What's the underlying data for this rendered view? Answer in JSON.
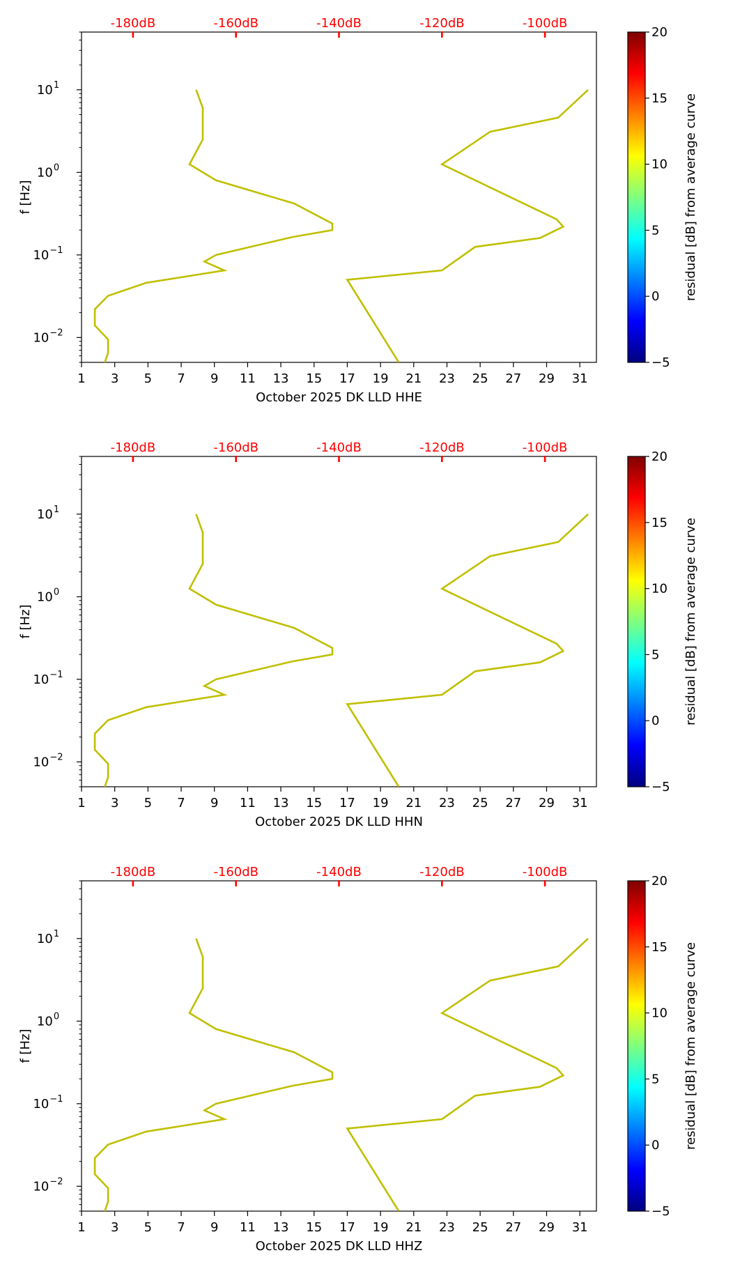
{
  "colors": {
    "curve": "#bfbf00",
    "db_axis": "#ff0000",
    "axis": "#000000",
    "colormap": [
      "#00007f",
      "#0000ff",
      "#007fff",
      "#00ffff",
      "#7fff7f",
      "#ffff00",
      "#ff7f00",
      "#ff0000",
      "#7f0000"
    ]
  },
  "chart_data": [
    {
      "type": "line",
      "xlabel": "October 2025 DK LLD  HHE",
      "ylabel": "f [Hz]",
      "x_ticks": [
        "1",
        "3",
        "5",
        "7",
        "9",
        "11",
        "13",
        "15",
        "17",
        "19",
        "21",
        "23",
        "25",
        "27",
        "29",
        "31"
      ],
      "xlim": [
        1,
        32
      ],
      "ylim": [
        0.005,
        50
      ],
      "y_scale": "log",
      "y_ticks": [
        {
          "base": "10",
          "exp": "−2",
          "value": 0.01
        },
        {
          "base": "10",
          "exp": "−1",
          "value": 0.1
        },
        {
          "base": "10",
          "exp": "0",
          "value": 1
        },
        {
          "base": "10",
          "exp": "1",
          "value": 10
        }
      ],
      "top_axis": {
        "ticks": [
          {
            "label": "-180dB",
            "x": 4.1
          },
          {
            "label": "-160dB",
            "x": 10.3
          },
          {
            "label": "-140dB",
            "x": 16.5
          },
          {
            "label": "-120dB",
            "x": 22.7
          },
          {
            "label": "-100dB",
            "x": 28.9
          }
        ]
      },
      "colorbar": {
        "label": "residual [dB] from average curve",
        "range": [
          -5,
          20
        ],
        "ticks": [
          "20",
          "15",
          "10",
          "5",
          "0",
          "−5"
        ]
      },
      "series": [
        {
          "points": [
            [
              7.9,
              10.0
            ],
            [
              8.3,
              6.0
            ],
            [
              8.3,
              2.5
            ],
            [
              7.5,
              1.25
            ],
            [
              9.1,
              0.8
            ],
            [
              13.8,
              0.42
            ],
            [
              16.1,
              0.24
            ],
            [
              16.1,
              0.2
            ],
            [
              13.7,
              0.165
            ],
            [
              9.1,
              0.1
            ],
            [
              8.4,
              0.083
            ],
            [
              9.6,
              0.065
            ],
            [
              4.9,
              0.046
            ],
            [
              2.6,
              0.032
            ],
            [
              1.8,
              0.022
            ],
            [
              1.8,
              0.014
            ],
            [
              2.6,
              0.0095
            ],
            [
              2.6,
              0.0065
            ],
            [
              2.4,
              0.005
            ]
          ]
        },
        {
          "points": [
            [
              31.5,
              10.0
            ],
            [
              29.7,
              4.6
            ],
            [
              25.6,
              3.1
            ],
            [
              22.7,
              1.25
            ],
            [
              29.6,
              0.27
            ],
            [
              30.0,
              0.22
            ],
            [
              28.6,
              0.16
            ],
            [
              24.7,
              0.125
            ],
            [
              22.7,
              0.065
            ],
            [
              17.0,
              0.05
            ],
            [
              20.1,
              0.005
            ]
          ]
        }
      ]
    },
    {
      "type": "line",
      "xlabel": "October 2025 DK LLD  HHN",
      "ylabel": "f [Hz]",
      "x_ticks": [
        "1",
        "3",
        "5",
        "7",
        "9",
        "11",
        "13",
        "15",
        "17",
        "19",
        "21",
        "23",
        "25",
        "27",
        "29",
        "31"
      ],
      "xlim": [
        1,
        32
      ],
      "ylim": [
        0.005,
        50
      ],
      "y_scale": "log",
      "y_ticks": [
        {
          "base": "10",
          "exp": "−2",
          "value": 0.01
        },
        {
          "base": "10",
          "exp": "−1",
          "value": 0.1
        },
        {
          "base": "10",
          "exp": "0",
          "value": 1
        },
        {
          "base": "10",
          "exp": "1",
          "value": 10
        }
      ],
      "top_axis": {
        "ticks": [
          {
            "label": "-180dB",
            "x": 4.1
          },
          {
            "label": "-160dB",
            "x": 10.3
          },
          {
            "label": "-140dB",
            "x": 16.5
          },
          {
            "label": "-120dB",
            "x": 22.7
          },
          {
            "label": "-100dB",
            "x": 28.9
          }
        ]
      },
      "colorbar": {
        "label": "residual [dB] from average curve",
        "range": [
          -5,
          20
        ],
        "ticks": [
          "20",
          "15",
          "10",
          "5",
          "0",
          "−5"
        ]
      },
      "series": [
        {
          "points": [
            [
              7.9,
              10.0
            ],
            [
              8.3,
              6.0
            ],
            [
              8.3,
              2.5
            ],
            [
              7.5,
              1.25
            ],
            [
              9.1,
              0.8
            ],
            [
              13.8,
              0.42
            ],
            [
              16.1,
              0.24
            ],
            [
              16.1,
              0.2
            ],
            [
              13.7,
              0.165
            ],
            [
              9.1,
              0.1
            ],
            [
              8.4,
              0.083
            ],
            [
              9.6,
              0.065
            ],
            [
              4.9,
              0.046
            ],
            [
              2.6,
              0.032
            ],
            [
              1.8,
              0.022
            ],
            [
              1.8,
              0.014
            ],
            [
              2.6,
              0.0095
            ],
            [
              2.6,
              0.0065
            ],
            [
              2.4,
              0.005
            ]
          ]
        },
        {
          "points": [
            [
              31.5,
              10.0
            ],
            [
              29.7,
              4.6
            ],
            [
              25.6,
              3.1
            ],
            [
              22.7,
              1.25
            ],
            [
              29.6,
              0.27
            ],
            [
              30.0,
              0.22
            ],
            [
              28.6,
              0.16
            ],
            [
              24.7,
              0.125
            ],
            [
              22.7,
              0.065
            ],
            [
              17.0,
              0.05
            ],
            [
              20.1,
              0.005
            ]
          ]
        }
      ]
    },
    {
      "type": "line",
      "xlabel": "October 2025 DK LLD  HHZ",
      "ylabel": "f [Hz]",
      "x_ticks": [
        "1",
        "3",
        "5",
        "7",
        "9",
        "11",
        "13",
        "15",
        "17",
        "19",
        "21",
        "23",
        "25",
        "27",
        "29",
        "31"
      ],
      "xlim": [
        1,
        32
      ],
      "ylim": [
        0.005,
        50
      ],
      "y_scale": "log",
      "y_ticks": [
        {
          "base": "10",
          "exp": "−2",
          "value": 0.01
        },
        {
          "base": "10",
          "exp": "−1",
          "value": 0.1
        },
        {
          "base": "10",
          "exp": "0",
          "value": 1
        },
        {
          "base": "10",
          "exp": "1",
          "value": 10
        }
      ],
      "top_axis": {
        "ticks": [
          {
            "label": "-180dB",
            "x": 4.1
          },
          {
            "label": "-160dB",
            "x": 10.3
          },
          {
            "label": "-140dB",
            "x": 16.5
          },
          {
            "label": "-120dB",
            "x": 22.7
          },
          {
            "label": "-100dB",
            "x": 28.9
          }
        ]
      },
      "colorbar": {
        "label": "residual [dB] from average curve",
        "range": [
          -5,
          20
        ],
        "ticks": [
          "20",
          "15",
          "10",
          "5",
          "0",
          "−5"
        ]
      },
      "series": [
        {
          "points": [
            [
              7.9,
              10.0
            ],
            [
              8.3,
              6.0
            ],
            [
              8.3,
              2.5
            ],
            [
              7.5,
              1.25
            ],
            [
              9.1,
              0.8
            ],
            [
              13.8,
              0.42
            ],
            [
              16.1,
              0.24
            ],
            [
              16.1,
              0.2
            ],
            [
              13.7,
              0.165
            ],
            [
              9.1,
              0.1
            ],
            [
              8.4,
              0.083
            ],
            [
              9.6,
              0.065
            ],
            [
              4.9,
              0.046
            ],
            [
              2.6,
              0.032
            ],
            [
              1.8,
              0.022
            ],
            [
              1.8,
              0.014
            ],
            [
              2.6,
              0.0095
            ],
            [
              2.6,
              0.0065
            ],
            [
              2.4,
              0.005
            ]
          ]
        },
        {
          "points": [
            [
              31.5,
              10.0
            ],
            [
              29.7,
              4.6
            ],
            [
              25.6,
              3.1
            ],
            [
              22.7,
              1.25
            ],
            [
              29.6,
              0.27
            ],
            [
              30.0,
              0.22
            ],
            [
              28.6,
              0.16
            ],
            [
              24.7,
              0.125
            ],
            [
              22.7,
              0.065
            ],
            [
              17.0,
              0.05
            ],
            [
              20.1,
              0.005
            ]
          ]
        }
      ]
    }
  ]
}
